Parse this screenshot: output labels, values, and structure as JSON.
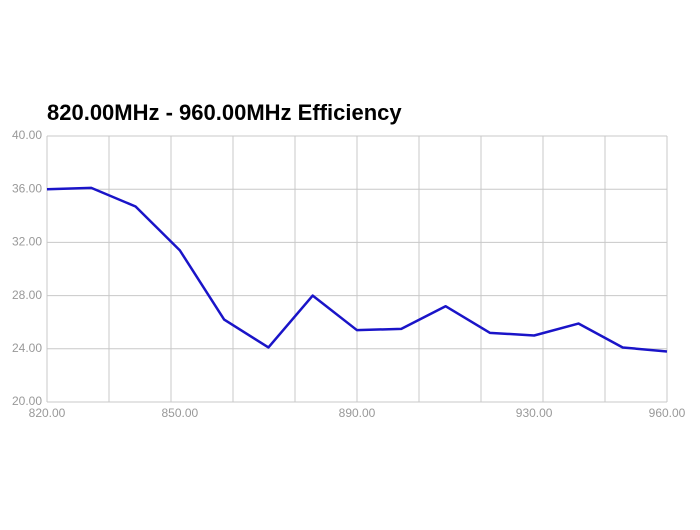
{
  "chart_data": {
    "type": "line",
    "title": "820.00MHz - 960.00MHz Efficiency",
    "x": [
      820,
      830,
      840,
      850,
      860,
      870,
      880,
      890,
      900,
      910,
      920,
      930,
      940,
      950,
      960
    ],
    "series": [
      {
        "color": "#1a14c8",
        "values": [
          36.0,
          36.1,
          34.7,
          31.4,
          26.2,
          24.1,
          28.0,
          25.4,
          25.5,
          27.2,
          25.2,
          25.0,
          25.9,
          24.1,
          23.8
        ]
      }
    ],
    "xlim": [
      820,
      960
    ],
    "xticks": [
      {
        "value": 820,
        "label": "820.00"
      },
      {
        "value": 850,
        "label": "850.00"
      },
      {
        "value": 890,
        "label": "890.00"
      },
      {
        "value": 930,
        "label": "930.00"
      },
      {
        "value": 960,
        "label": "960.00"
      }
    ],
    "xgrid": [
      820,
      834,
      848,
      862,
      876,
      890,
      904,
      918,
      932,
      946,
      960
    ],
    "ylim": [
      20,
      40
    ],
    "yticks": [
      {
        "value": 20,
        "label": "20.00"
      },
      {
        "value": 24,
        "label": "24.00"
      },
      {
        "value": 28,
        "label": "28.00"
      },
      {
        "value": 32,
        "label": "32.00"
      },
      {
        "value": 36,
        "label": "36.00"
      },
      {
        "value": 40,
        "label": "40.00"
      }
    ],
    "grid": true
  }
}
